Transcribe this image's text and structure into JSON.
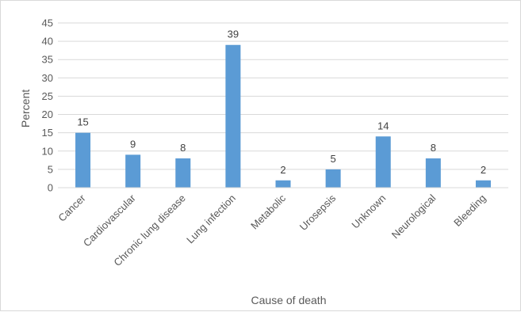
{
  "chart_data": {
    "type": "bar",
    "categories": [
      "Cancer",
      "Cardiovascular",
      "Chronic lung disease",
      "Lung infection",
      "Metabolic",
      "Urosepsis",
      "Unknown",
      "Neurological",
      "Bleeding"
    ],
    "series": [
      {
        "values": [
          15,
          9,
          8,
          39,
          2,
          5,
          14,
          8,
          2
        ],
        "color": "#5b9bd5"
      }
    ],
    "data_labels": [
      "15",
      "9",
      "8",
      "39",
      "2",
      "5",
      "14",
      "8",
      "2"
    ],
    "xlabel": "Cause of death",
    "ylabel": "Percent",
    "ylim": [
      0,
      45
    ],
    "yticks": [
      0,
      5,
      10,
      15,
      20,
      25,
      30,
      35,
      40,
      45
    ],
    "grid": true,
    "legend": "none"
  }
}
